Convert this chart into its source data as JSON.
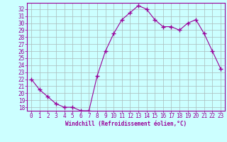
{
  "x": [
    0,
    1,
    2,
    3,
    4,
    5,
    6,
    7,
    8,
    9,
    10,
    11,
    12,
    13,
    14,
    15,
    16,
    17,
    18,
    19,
    20,
    21,
    22,
    23
  ],
  "y": [
    22.0,
    20.5,
    19.5,
    18.5,
    18.0,
    18.0,
    17.5,
    17.5,
    22.5,
    26.0,
    28.5,
    30.5,
    31.5,
    32.5,
    32.0,
    30.5,
    29.5,
    29.5,
    29.0,
    30.0,
    30.5,
    28.5,
    26.0,
    23.5
  ],
  "line_color": "#990099",
  "marker": "+",
  "marker_size": 4,
  "marker_lw": 1.0,
  "bg_color": "#ccffff",
  "grid_color": "#aabbbb",
  "xlabel": "Windchill (Refroidissement éolien,°C)",
  "xlabel_color": "#990099",
  "tick_color": "#990099",
  "spine_color": "#990099",
  "ylim": [
    17.5,
    32.9
  ],
  "xlim": [
    -0.5,
    23.5
  ],
  "yticks": [
    18,
    19,
    20,
    21,
    22,
    23,
    24,
    25,
    26,
    27,
    28,
    29,
    30,
    31,
    32
  ],
  "xticks": [
    0,
    1,
    2,
    3,
    4,
    5,
    6,
    7,
    8,
    9,
    10,
    11,
    12,
    13,
    14,
    15,
    16,
    17,
    18,
    19,
    20,
    21,
    22,
    23
  ],
  "tick_fontsize": 5.5,
  "xlabel_fontsize": 5.5
}
